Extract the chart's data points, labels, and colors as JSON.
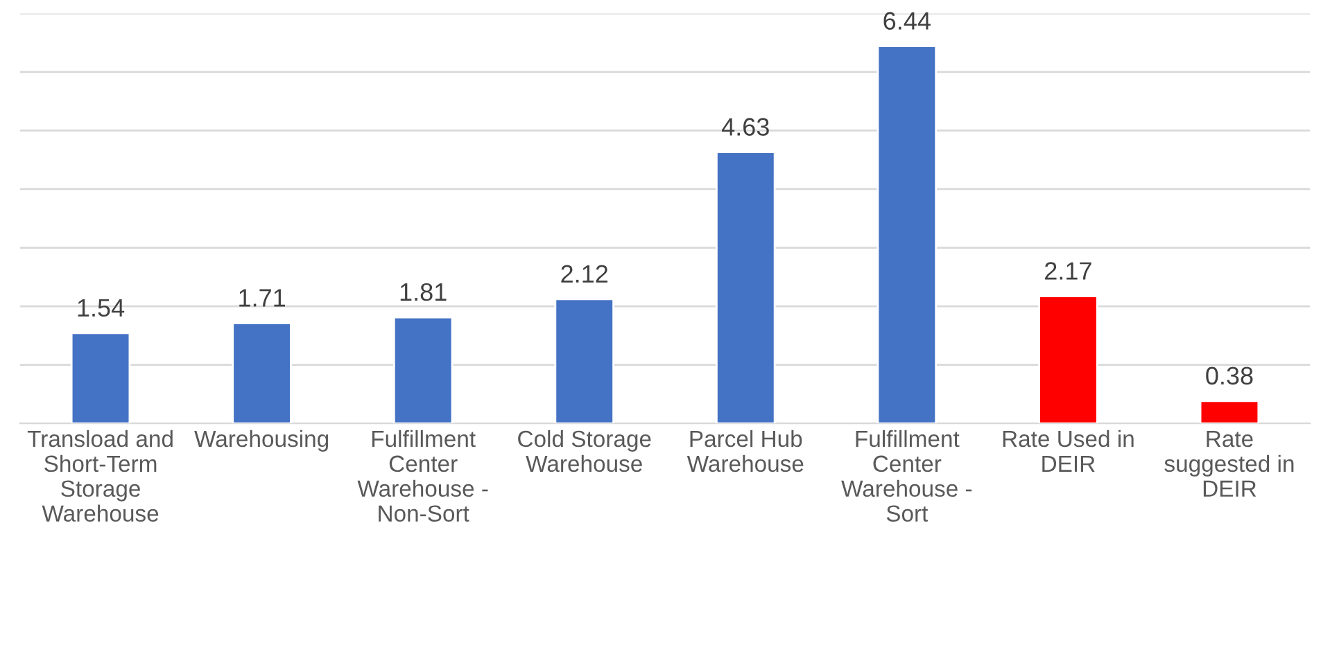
{
  "chart_data": {
    "type": "bar",
    "categories": [
      "Transload and\nShort-Term\nStorage\nWarehouse",
      "Warehousing",
      "Fulfillment\nCenter\nWarehouse -\nNon-Sort",
      "Cold Storage\nWarehouse",
      "Parcel Hub\nWarehouse",
      "Fulfillment\nCenter\nWarehouse -\nSort",
      "Rate Used in\nDEIR",
      "Rate\nsuggested in\nDEIR"
    ],
    "values": [
      1.54,
      1.71,
      1.81,
      2.12,
      4.63,
      6.44,
      2.17,
      0.38
    ],
    "colors": [
      "#4472c4",
      "#4472c4",
      "#4472c4",
      "#4472c4",
      "#4472c4",
      "#4472c4",
      "#ff0000",
      "#ff0000"
    ],
    "ylim": [
      0,
      7
    ],
    "yticks": [
      {
        "value": 0,
        "label": null
      },
      {
        "value": 1,
        "label": null
      },
      {
        "value": 2,
        "label": null
      },
      {
        "value": 3,
        "label": null
      },
      {
        "value": 4,
        "label": null
      },
      {
        "value": 5,
        "label": null
      },
      {
        "value": 6,
        "label": null
      },
      {
        "value": 7,
        "label": null
      }
    ],
    "grid": "y",
    "data_labels": true
  }
}
